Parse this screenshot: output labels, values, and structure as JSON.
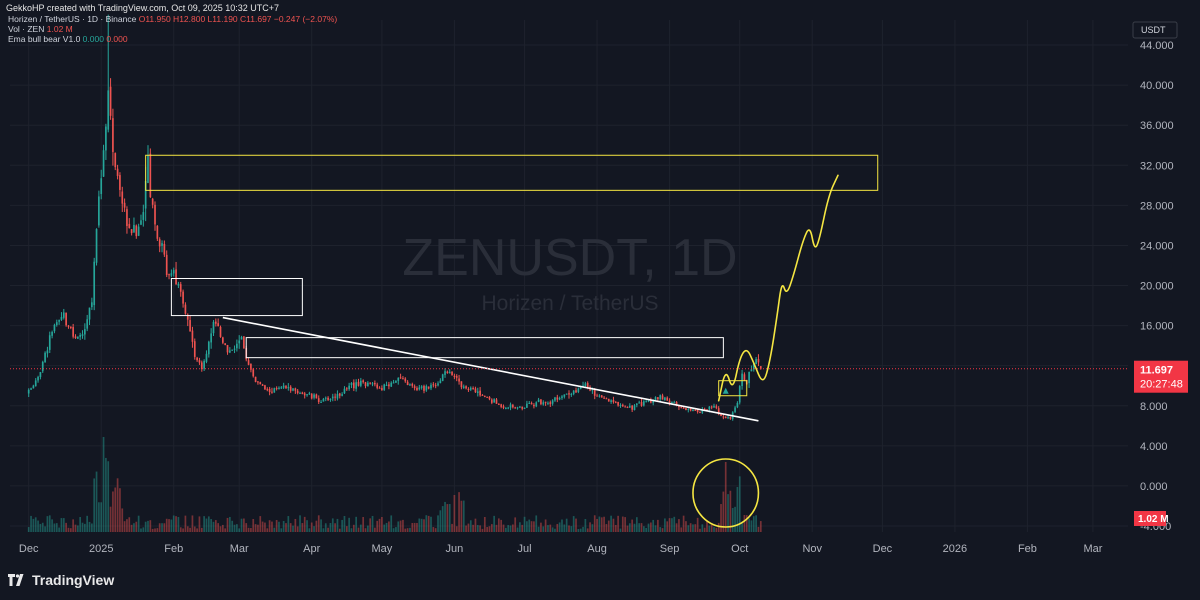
{
  "header": {
    "created_by": "GekkoHP created with TradingView.com, Oct 09, 2025 10:32 UTC+7",
    "symbol_line": "Horizen / TetherUS · 1D · Binance",
    "ohlc": "O11.950 H12.800 L11.190 C11.697 −0.247 (−2.07%)",
    "vol_label": "Vol · ZEN",
    "vol_value": "1.02 M",
    "ema_label": "Ema bull bear V1.0",
    "ema_v1": "0.000",
    "ema_v2": "0.000"
  },
  "watermark": {
    "symbol": "ZENUSDT, 1D",
    "name": "Horizen / TetherUS"
  },
  "currency": "USDT",
  "price_badge": {
    "price": "11.697",
    "countdown": "20:27:48",
    "color": "#f23645"
  },
  "volume_badge": {
    "value": "1.02 M",
    "color": "#f23645"
  },
  "brand": {
    "name": "TradingView"
  },
  "colors": {
    "up": "#26a69a",
    "down": "#ef5350",
    "background": "#131722",
    "annotation_yellow": "#f5e642",
    "annotation_white": "#ffffff"
  },
  "chart_data": {
    "type": "candlestick",
    "symbol": "ZENUSDT",
    "timeframe": "1D",
    "y_ticks": [
      "44.000",
      "40.000",
      "36.000",
      "32.000",
      "28.000",
      "24.000",
      "20.000",
      "16.000",
      "12.000",
      "8.000",
      "4.000",
      "0.000",
      "-4.000"
    ],
    "ylim": [
      -4.6,
      46.5
    ],
    "x_ticks": [
      "Dec",
      "2025",
      "Feb",
      "Mar",
      "Apr",
      "May",
      "Jun",
      "Jul",
      "Aug",
      "Sep",
      "Oct",
      "Nov",
      "Dec",
      "2026",
      "Feb",
      "Mar"
    ],
    "x_tick_days": [
      0,
      31,
      62,
      90,
      121,
      151,
      182,
      212,
      243,
      274,
      304,
      335,
      365,
      396,
      427,
      455
    ],
    "x_start_date": "2024-11-20",
    "last_close": 11.697,
    "price_path": [
      {
        "x": 0,
        "y": 9.3
      },
      {
        "x": 5,
        "y": 11.5
      },
      {
        "x": 10,
        "y": 15.5
      },
      {
        "x": 15,
        "y": 17.0
      },
      {
        "x": 20,
        "y": 14.5
      },
      {
        "x": 24,
        "y": 15.5
      },
      {
        "x": 27,
        "y": 18.5
      },
      {
        "x": 30,
        "y": 29.0
      },
      {
        "x": 34,
        "y": 38.5
      },
      {
        "x": 37,
        "y": 31.0
      },
      {
        "x": 40,
        "y": 28.0
      },
      {
        "x": 43,
        "y": 26.0
      },
      {
        "x": 46,
        "y": 25.0
      },
      {
        "x": 49,
        "y": 27.5
      },
      {
        "x": 51,
        "y": 31.5
      },
      {
        "x": 53,
        "y": 27.0
      },
      {
        "x": 56,
        "y": 24.5
      },
      {
        "x": 59,
        "y": 22.0
      },
      {
        "x": 62,
        "y": 21.0
      },
      {
        "x": 65,
        "y": 19.0
      },
      {
        "x": 68,
        "y": 16.5
      },
      {
        "x": 71,
        "y": 13.0
      },
      {
        "x": 74,
        "y": 11.5
      },
      {
        "x": 77,
        "y": 14.5
      },
      {
        "x": 79,
        "y": 16.5
      },
      {
        "x": 82,
        "y": 15.0
      },
      {
        "x": 85,
        "y": 13.5
      },
      {
        "x": 88,
        "y": 14.0
      },
      {
        "x": 91,
        "y": 14.5
      },
      {
        "x": 94,
        "y": 12.0
      },
      {
        "x": 97,
        "y": 10.5
      },
      {
        "x": 102,
        "y": 9.5
      },
      {
        "x": 110,
        "y": 9.8
      },
      {
        "x": 118,
        "y": 9.2
      },
      {
        "x": 126,
        "y": 8.5
      },
      {
        "x": 134,
        "y": 9.3
      },
      {
        "x": 142,
        "y": 10.5
      },
      {
        "x": 150,
        "y": 9.7
      },
      {
        "x": 158,
        "y": 10.8
      },
      {
        "x": 166,
        "y": 9.6
      },
      {
        "x": 174,
        "y": 10.2
      },
      {
        "x": 180,
        "y": 11.7
      },
      {
        "x": 185,
        "y": 10.0
      },
      {
        "x": 190,
        "y": 9.5
      },
      {
        "x": 196,
        "y": 8.8
      },
      {
        "x": 202,
        "y": 8.0
      },
      {
        "x": 210,
        "y": 7.8
      },
      {
        "x": 218,
        "y": 8.3
      },
      {
        "x": 226,
        "y": 8.6
      },
      {
        "x": 232,
        "y": 9.3
      },
      {
        "x": 238,
        "y": 10.1
      },
      {
        "x": 244,
        "y": 8.8
      },
      {
        "x": 250,
        "y": 8.3
      },
      {
        "x": 258,
        "y": 7.9
      },
      {
        "x": 264,
        "y": 8.4
      },
      {
        "x": 270,
        "y": 8.9
      },
      {
        "x": 276,
        "y": 8.1
      },
      {
        "x": 282,
        "y": 7.6
      },
      {
        "x": 288,
        "y": 7.4
      },
      {
        "x": 293,
        "y": 7.8
      },
      {
        "x": 297,
        "y": 6.9
      },
      {
        "x": 300,
        "y": 6.7
      },
      {
        "x": 303,
        "y": 8.5
      },
      {
        "x": 305,
        "y": 11.0
      },
      {
        "x": 307,
        "y": 10.2
      },
      {
        "x": 309,
        "y": 11.9
      },
      {
        "x": 311,
        "y": 12.3
      },
      {
        "x": 313,
        "y": 11.697
      }
    ],
    "annotations": {
      "resistance_zones": [
        {
          "x1": 50,
          "x2": 363,
          "y1": 29.5,
          "y2": 33.0,
          "color": "#f5e642"
        },
        {
          "x1": 61,
          "x2": 117,
          "y1": 17.0,
          "y2": 20.7,
          "color": "#ffffff"
        },
        {
          "x1": 93,
          "x2": 297,
          "y1": 12.8,
          "y2": 14.8,
          "color": "#ffffff"
        },
        {
          "x1": 295,
          "x2": 307,
          "y1": 9.0,
          "y2": 10.5,
          "color": "#f5e642"
        }
      ],
      "trendline": {
        "x1": 83,
        "y1": 16.8,
        "x2": 312,
        "y2": 6.5,
        "color": "#ffffff"
      },
      "projection_path": [
        {
          "x": 295,
          "y": 8.5
        },
        {
          "x": 298,
          "y": 11.8
        },
        {
          "x": 301,
          "y": 9.4
        },
        {
          "x": 304,
          "y": 12.8
        },
        {
          "x": 307,
          "y": 13.8
        },
        {
          "x": 310,
          "y": 12.3
        },
        {
          "x": 314,
          "y": 10.0
        },
        {
          "x": 317,
          "y": 12.5
        },
        {
          "x": 320,
          "y": 17.0
        },
        {
          "x": 322,
          "y": 20.5
        },
        {
          "x": 324,
          "y": 19.0
        },
        {
          "x": 327,
          "y": 21.0
        },
        {
          "x": 331,
          "y": 24.5
        },
        {
          "x": 334,
          "y": 26.0
        },
        {
          "x": 336,
          "y": 23.5
        },
        {
          "x": 338,
          "y": 24.5
        },
        {
          "x": 342,
          "y": 29.0
        },
        {
          "x": 346,
          "y": 31.0
        }
      ],
      "volume_circle": {
        "cx": 298,
        "rx": 14,
        "color": "#f5e642"
      }
    }
  }
}
